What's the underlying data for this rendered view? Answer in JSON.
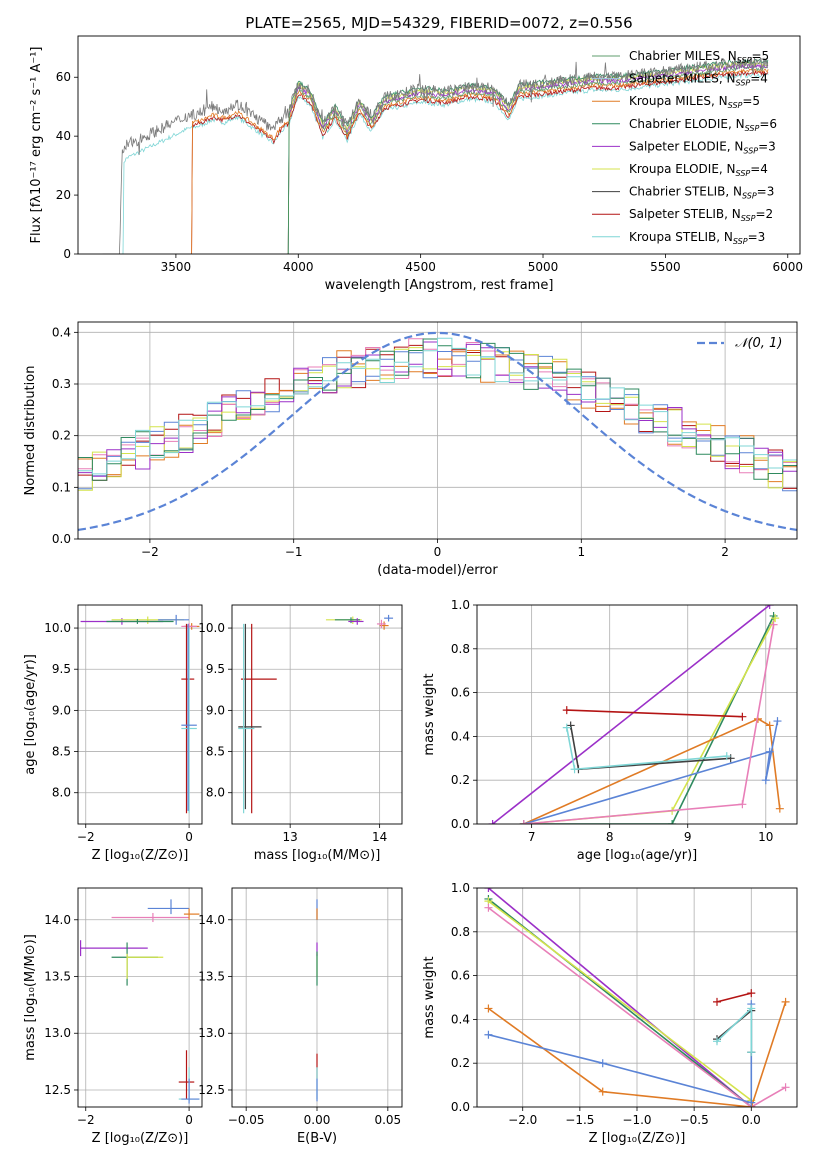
{
  "colors": {
    "Chabrier MILES": "#5f9e6e",
    "Salpeter MILES": "#a0c8e8",
    "Kroupa MILES": "#e07b25",
    "Chabrier ELODIE": "#2f8a5f",
    "Salpeter ELODIE": "#9b30c8",
    "Kroupa ELODIE": "#d4e34c",
    "Chabrier STELIB": "#404040",
    "Salpeter STELIB": "#b41414",
    "Kroupa STELIB": "#7fd6d6",
    "blue": "#5b84d6",
    "pink": "#e87fb8",
    "grid": "#b0b0b0"
  },
  "chart_data": [
    {
      "id": "spectrum",
      "type": "line",
      "title": "PLATE=2565, MJD=54329, FIBERID=0072, z=0.556",
      "xlabel": "wavelength [Angstrom, rest frame]",
      "ylabel": "Flux [fλ10⁻¹⁷ erg cm⁻² s⁻¹ A⁻¹]",
      "xlim": [
        3100,
        6050
      ],
      "ylim": [
        0,
        74
      ],
      "xticks": [
        3500,
        4000,
        4500,
        5000,
        5500,
        6000
      ],
      "yticks": [
        0,
        20,
        40,
        60
      ],
      "grid": false,
      "legend_position": "top-right",
      "legend": [
        {
          "label": "Chabrier MILES, N",
          "sub": "SSP",
          "eq": "=5"
        },
        {
          "label": "Salpeter MILES, N",
          "sub": "SSP",
          "eq": "=4"
        },
        {
          "label": "Kroupa MILES, N",
          "sub": "SSP",
          "eq": "=5"
        },
        {
          "label": "Chabrier ELODIE, N",
          "sub": "SSP",
          "eq": "=6"
        },
        {
          "label": "Salpeter ELODIE, N",
          "sub": "SSP",
          "eq": "=3"
        },
        {
          "label": "Kroupa ELODIE, N",
          "sub": "SSP",
          "eq": "=4"
        },
        {
          "label": "Chabrier STELIB, N",
          "sub": "SSP",
          "eq": "=3"
        },
        {
          "label": "Salpeter STELIB, N",
          "sub": "SSP",
          "eq": "=2"
        },
        {
          "label": "Kroupa STELIB, N",
          "sub": "SSP",
          "eq": "=3"
        }
      ],
      "data_curve": {
        "x": [
          3200,
          3270,
          3280,
          3300,
          3350,
          3400,
          3450,
          3500,
          3550,
          3600,
          3650,
          3700,
          3750,
          3800,
          3850,
          3900,
          3930,
          3960,
          4000,
          4050,
          4100,
          4150,
          4200,
          4250,
          4300,
          4350,
          4400,
          4500,
          4600,
          4700,
          4800,
          4862,
          4900,
          5000,
          5100,
          5200,
          5300,
          5400,
          5500,
          5600,
          5700,
          5800,
          5900
        ],
        "y": [
          0,
          0,
          35,
          37,
          39,
          41,
          43,
          45,
          47,
          48,
          50,
          49,
          51,
          48,
          45,
          42,
          46,
          48,
          58,
          55,
          44,
          50,
          43,
          52,
          46,
          53,
          54,
          56,
          55,
          57,
          56,
          50,
          57,
          58,
          59,
          60,
          60,
          61,
          62,
          63,
          64,
          65,
          65
        ]
      },
      "model_start": [
        {
          "series": "Kroupa STELIB",
          "x0": 3280
        },
        {
          "series": "Salpeter STELIB",
          "x0": 3560
        },
        {
          "series": "Kroupa MILES",
          "x0": 3560
        },
        {
          "series": "Chabrier MILES",
          "x0": 3955
        },
        {
          "series": "Salpeter ELODIE",
          "x0": 3955
        },
        {
          "series": "Kroupa ELODIE",
          "x0": 3955
        },
        {
          "series": "Chabrier ELODIE",
          "x0": 3955
        }
      ]
    },
    {
      "id": "residuals",
      "type": "line",
      "title": "",
      "xlabel": "(data-model)/error",
      "ylabel": "Normed distribution",
      "xlim": [
        -2.5,
        2.5
      ],
      "ylim": [
        0,
        0.42
      ],
      "xticks": [
        -2,
        -1,
        0,
        1,
        2
      ],
      "yticks": [
        0.0,
        0.1,
        0.2,
        0.3,
        0.4
      ],
      "grid": true,
      "legend_position": "top-right",
      "legend": [
        {
          "label": "𝒩(0, 1)"
        }
      ],
      "normal": {
        "mean": 0,
        "sigma": 1,
        "style": "dashed"
      },
      "bin_width": 0.1,
      "hist_series": [
        "Salpeter STELIB",
        "Kroupa MILES",
        "blue",
        "pink",
        "Kroupa ELODIE",
        "Salpeter ELODIE",
        "Chabrier ELODIE",
        "Kroupa STELIB"
      ]
    },
    {
      "id": "age-vs-Z",
      "type": "scatter",
      "xlabel": "Z [log₁₀(Z/Z⊙)]",
      "ylabel": "age  [log₁₀(age/yr)]",
      "xlim": [
        -2.15,
        0.25
      ],
      "ylim": [
        7.62,
        10.28
      ],
      "xticks": [
        -2,
        0
      ],
      "yticks": [
        8.0,
        8.5,
        9.0,
        9.5,
        10.0
      ],
      "grid": true,
      "points": [
        {
          "s": "Salpeter ELODIE",
          "x": -1.3,
          "y": 10.08,
          "ex": [
            -2.1,
            -0.5
          ],
          "ey": [
            10.04,
            10.12
          ]
        },
        {
          "s": "Kroupa ELODIE",
          "x": -0.8,
          "y": 10.1,
          "ex": [
            -1.5,
            -0.1
          ],
          "ey": [
            10.05,
            10.14
          ]
        },
        {
          "s": "Chabrier ELODIE",
          "x": -1.0,
          "y": 10.08,
          "ex": [
            -1.6,
            -0.3
          ],
          "ey": [
            10.05,
            10.11
          ]
        },
        {
          "s": "blue",
          "x": -0.25,
          "y": 10.1,
          "ex": [
            -0.6,
            0.0
          ],
          "ey": [
            10.04,
            10.16
          ]
        },
        {
          "s": "Kroupa MILES",
          "x": 0.05,
          "y": 10.02,
          "ex": [
            -0.1,
            0.2
          ],
          "ey": [
            9.98,
            10.06
          ]
        },
        {
          "s": "pink",
          "x": 0.0,
          "y": 10.02,
          "ex": [
            -0.15,
            0.15
          ],
          "ey": [
            9.98,
            10.06
          ]
        },
        {
          "s": "Salpeter STELIB",
          "x": -0.05,
          "y": 9.38,
          "ex": [
            -0.15,
            0.1
          ],
          "ey": [
            7.75,
            10.05
          ]
        },
        {
          "s": "Kroupa STELIB",
          "x": 0.0,
          "y": 8.78,
          "ex": [
            -0.15,
            0.15
          ],
          "ey": [
            7.75,
            10.0
          ]
        },
        {
          "s": "blue",
          "x": -0.02,
          "y": 8.82,
          "ex": [
            -0.15,
            0.15
          ],
          "ey": [
            7.78,
            10.05
          ]
        }
      ]
    },
    {
      "id": "age-vs-mass",
      "type": "scatter",
      "xlabel": "mass [log₁₀(M/M⊙)]",
      "ylabel": "",
      "xlim": [
        12.35,
        14.25
      ],
      "ylim": [
        7.62,
        10.28
      ],
      "xticks": [
        13,
        14
      ],
      "yticks": [
        8.0,
        8.5,
        9.0,
        9.5,
        10.0
      ],
      "grid": true,
      "points": [
        {
          "s": "Kroupa ELODIE",
          "x": 13.7,
          "y": 10.1,
          "ex": [
            13.4,
            13.8
          ],
          "ey": [
            10.05,
            10.14
          ]
        },
        {
          "s": "Chabrier ELODIE",
          "x": 13.68,
          "y": 10.1,
          "ex": [
            13.5,
            13.78
          ],
          "ey": [
            10.06,
            10.13
          ]
        },
        {
          "s": "Salpeter ELODIE",
          "x": 13.75,
          "y": 10.08,
          "ex": [
            13.65,
            13.82
          ],
          "ey": [
            10.04,
            10.12
          ]
        },
        {
          "s": "blue",
          "x": 14.1,
          "y": 10.12,
          "ex": [
            14.05,
            14.15
          ],
          "ey": [
            10.08,
            10.16
          ]
        },
        {
          "s": "Kroupa MILES",
          "x": 14.05,
          "y": 10.03,
          "ex": [
            14.0,
            14.1
          ],
          "ey": [
            9.98,
            10.08
          ]
        },
        {
          "s": "pink",
          "x": 14.02,
          "y": 10.05,
          "ex": [
            13.97,
            14.07
          ],
          "ey": [
            10.0,
            10.1
          ]
        },
        {
          "s": "Salpeter STELIB",
          "x": 12.57,
          "y": 9.38,
          "ex": [
            12.45,
            12.85
          ],
          "ey": [
            7.75,
            10.05
          ]
        },
        {
          "s": "Chabrier STELIB",
          "x": 12.5,
          "y": 8.8,
          "ex": [
            12.42,
            12.68
          ],
          "ey": [
            7.8,
            10.05
          ]
        },
        {
          "s": "Kroupa STELIB",
          "x": 12.48,
          "y": 8.78,
          "ex": [
            12.42,
            12.6
          ],
          "ey": [
            7.75,
            10.05
          ]
        }
      ]
    },
    {
      "id": "weight-vs-age",
      "type": "line",
      "xlabel": "age  [log₁₀(age/yr)]",
      "ylabel": "mass weight",
      "xlim": [
        6.3,
        10.4
      ],
      "ylim": [
        0,
        1.0
      ],
      "xticks": [
        7,
        8,
        9,
        10
      ],
      "yticks": [
        0.0,
        0.2,
        0.4,
        0.6,
        0.8,
        1.0
      ],
      "grid": true,
      "series": [
        {
          "s": "Salpeter ELODIE",
          "x": [
            6.5,
            10.05
          ],
          "y": [
            0.0,
            1.0
          ]
        },
        {
          "s": "Chabrier ELODIE",
          "x": [
            6.9,
            8.8,
            10.1
          ],
          "y": [
            0.0,
            0.0,
            0.95
          ]
        },
        {
          "s": "Kroupa ELODIE",
          "x": [
            6.9,
            8.8,
            10.12
          ],
          "y": [
            0.0,
            0.06,
            0.94
          ]
        },
        {
          "s": "Kroupa MILES",
          "x": [
            6.9,
            9.9,
            10.05,
            10.18
          ],
          "y": [
            0.0,
            0.48,
            0.45,
            0.07
          ]
        },
        {
          "s": "blue",
          "x": [
            6.9,
            10.05,
            10.0,
            10.15
          ],
          "y": [
            0.0,
            0.33,
            0.2,
            0.47
          ]
        },
        {
          "s": "pink",
          "x": [
            6.9,
            9.7,
            10.1
          ],
          "y": [
            0.0,
            0.09,
            0.91
          ]
        },
        {
          "s": "Salpeter STELIB",
          "x": [
            7.45,
            9.7
          ],
          "y": [
            0.52,
            0.49
          ]
        },
        {
          "s": "Chabrier STELIB",
          "x": [
            7.5,
            7.6,
            9.55
          ],
          "y": [
            0.45,
            0.25,
            0.3
          ]
        },
        {
          "s": "Kroupa STELIB",
          "x": [
            7.45,
            7.55,
            9.5
          ],
          "y": [
            0.44,
            0.25,
            0.31
          ]
        }
      ]
    },
    {
      "id": "mass-vs-Z",
      "type": "scatter",
      "xlabel": "Z [log₁₀(Z/Z⊙)]",
      "ylabel": "mass [log₁₀(M/M⊙)]",
      "xlim": [
        -2.15,
        0.25
      ],
      "ylim": [
        12.35,
        14.28
      ],
      "xticks": [
        -2,
        0
      ],
      "yticks": [
        12.5,
        13.0,
        13.5,
        14.0
      ],
      "grid": true,
      "points": [
        {
          "s": "Salpeter ELODIE",
          "x": -2.1,
          "y": 13.75,
          "ex": [
            -2.1,
            -0.8
          ],
          "ey": [
            13.68,
            13.82
          ]
        },
        {
          "s": "Chabrier ELODIE",
          "x": -1.2,
          "y": 13.67,
          "ex": [
            -1.5,
            -0.6
          ],
          "ey": [
            13.42,
            13.8
          ]
        },
        {
          "s": "Kroupa ELODIE",
          "x": -1.2,
          "y": 13.67,
          "ex": [
            -1.2,
            -0.5
          ],
          "ey": [
            13.48,
            13.7
          ]
        },
        {
          "s": "pink",
          "x": -0.7,
          "y": 14.02,
          "ex": [
            -1.5,
            0.0
          ],
          "ey": [
            13.98,
            14.06
          ]
        },
        {
          "s": "blue",
          "x": -0.35,
          "y": 14.1,
          "ex": [
            -0.8,
            0.0
          ],
          "ey": [
            14.05,
            14.18
          ]
        },
        {
          "s": "Kroupa MILES",
          "x": 0.0,
          "y": 14.05,
          "ex": [
            -0.1,
            0.2
          ],
          "ey": [
            14.0,
            14.1
          ]
        },
        {
          "s": "Salpeter STELIB",
          "x": -0.05,
          "y": 12.57,
          "ex": [
            -0.2,
            0.1
          ],
          "ey": [
            12.42,
            12.85
          ]
        },
        {
          "s": "Kroupa STELIB",
          "x": 0.0,
          "y": 12.42,
          "ex": [
            -0.2,
            0.2
          ],
          "ey": [
            12.4,
            12.7
          ]
        },
        {
          "s": "blue",
          "x": 0.0,
          "y": 12.42,
          "ex": [
            -0.15,
            0.2
          ],
          "ey": [
            12.38,
            12.6
          ]
        }
      ]
    },
    {
      "id": "mass-vs-EBV",
      "type": "scatter",
      "xlabel": "E(B-V)",
      "ylabel": "",
      "xlim": [
        -0.06,
        0.06
      ],
      "ylim": [
        12.35,
        14.28
      ],
      "xticks": [
        -0.05,
        0.0,
        0.05
      ],
      "xticklabels": [
        "−0.05",
        "0.00",
        "0.05"
      ],
      "yticks": [
        12.5,
        13.0,
        13.5,
        14.0
      ],
      "grid": true,
      "points": [
        {
          "s": "blue",
          "x": 0.0,
          "y": 14.1,
          "ey": [
            14.0,
            14.18
          ]
        },
        {
          "s": "Kroupa MILES",
          "x": 0.0,
          "y": 14.05,
          "ey": [
            14.0,
            14.1
          ]
        },
        {
          "s": "Salpeter ELODIE",
          "x": 0.0,
          "y": 13.75,
          "ey": [
            13.68,
            13.8
          ]
        },
        {
          "s": "Kroupa ELODIE",
          "x": 0.0,
          "y": 13.67,
          "ey": [
            13.5,
            13.7
          ]
        },
        {
          "s": "Chabrier ELODIE",
          "x": 0.0,
          "y": 13.67,
          "ey": [
            13.42,
            13.72
          ]
        },
        {
          "s": "Salpeter STELIB",
          "x": 0.0,
          "y": 12.72,
          "ey": [
            12.6,
            12.82
          ]
        },
        {
          "s": "Kroupa STELIB",
          "x": 0.0,
          "y": 12.55,
          "ey": [
            12.42,
            12.7
          ]
        },
        {
          "s": "blue",
          "x": 0.0,
          "y": 12.45,
          "ey": [
            12.4,
            12.6
          ]
        }
      ]
    },
    {
      "id": "weight-vs-Z",
      "type": "line",
      "xlabel": "Z [log₁₀(Z/Z⊙)]",
      "ylabel": "mass weight",
      "xlim": [
        -2.4,
        0.4
      ],
      "ylim": [
        0,
        1.0
      ],
      "xticks": [
        -2.0,
        -1.5,
        -1.0,
        -0.5,
        0.0
      ],
      "xticklabels": [
        "−2.0",
        "−1.5",
        "−1.0",
        "−0.5",
        "0.0"
      ],
      "yticks": [
        0.0,
        0.2,
        0.4,
        0.6,
        0.8,
        1.0
      ],
      "grid": true,
      "series": [
        {
          "s": "Salpeter ELODIE",
          "x": [
            -2.3,
            0.0
          ],
          "y": [
            1.0,
            0.0
          ]
        },
        {
          "s": "Chabrier ELODIE",
          "x": [
            -2.3,
            0.0
          ],
          "y": [
            0.95,
            0.0
          ]
        },
        {
          "s": "Kroupa ELODIE",
          "x": [
            -2.3,
            0.0
          ],
          "y": [
            0.94,
            0.03
          ]
        },
        {
          "s": "pink",
          "x": [
            -2.3,
            0.0,
            0.3
          ],
          "y": [
            0.91,
            0.0,
            0.09
          ]
        },
        {
          "s": "Kroupa MILES",
          "x": [
            -2.3,
            -1.3,
            0.0,
            0.3
          ],
          "y": [
            0.45,
            0.07,
            0.0,
            0.48
          ]
        },
        {
          "s": "blue",
          "x": [
            -2.3,
            -1.3,
            0.0,
            0.0
          ],
          "y": [
            0.33,
            0.2,
            0.02,
            0.47
          ]
        },
        {
          "s": "Salpeter STELIB",
          "x": [
            -0.3,
            0.0
          ],
          "y": [
            0.48,
            0.52
          ]
        },
        {
          "s": "Chabrier STELIB",
          "x": [
            -0.3,
            0.0,
            0.0
          ],
          "y": [
            0.31,
            0.44,
            0.25
          ]
        },
        {
          "s": "Kroupa STELIB",
          "x": [
            -0.3,
            0.0,
            0.0
          ],
          "y": [
            0.3,
            0.45,
            0.25
          ]
        }
      ]
    }
  ]
}
